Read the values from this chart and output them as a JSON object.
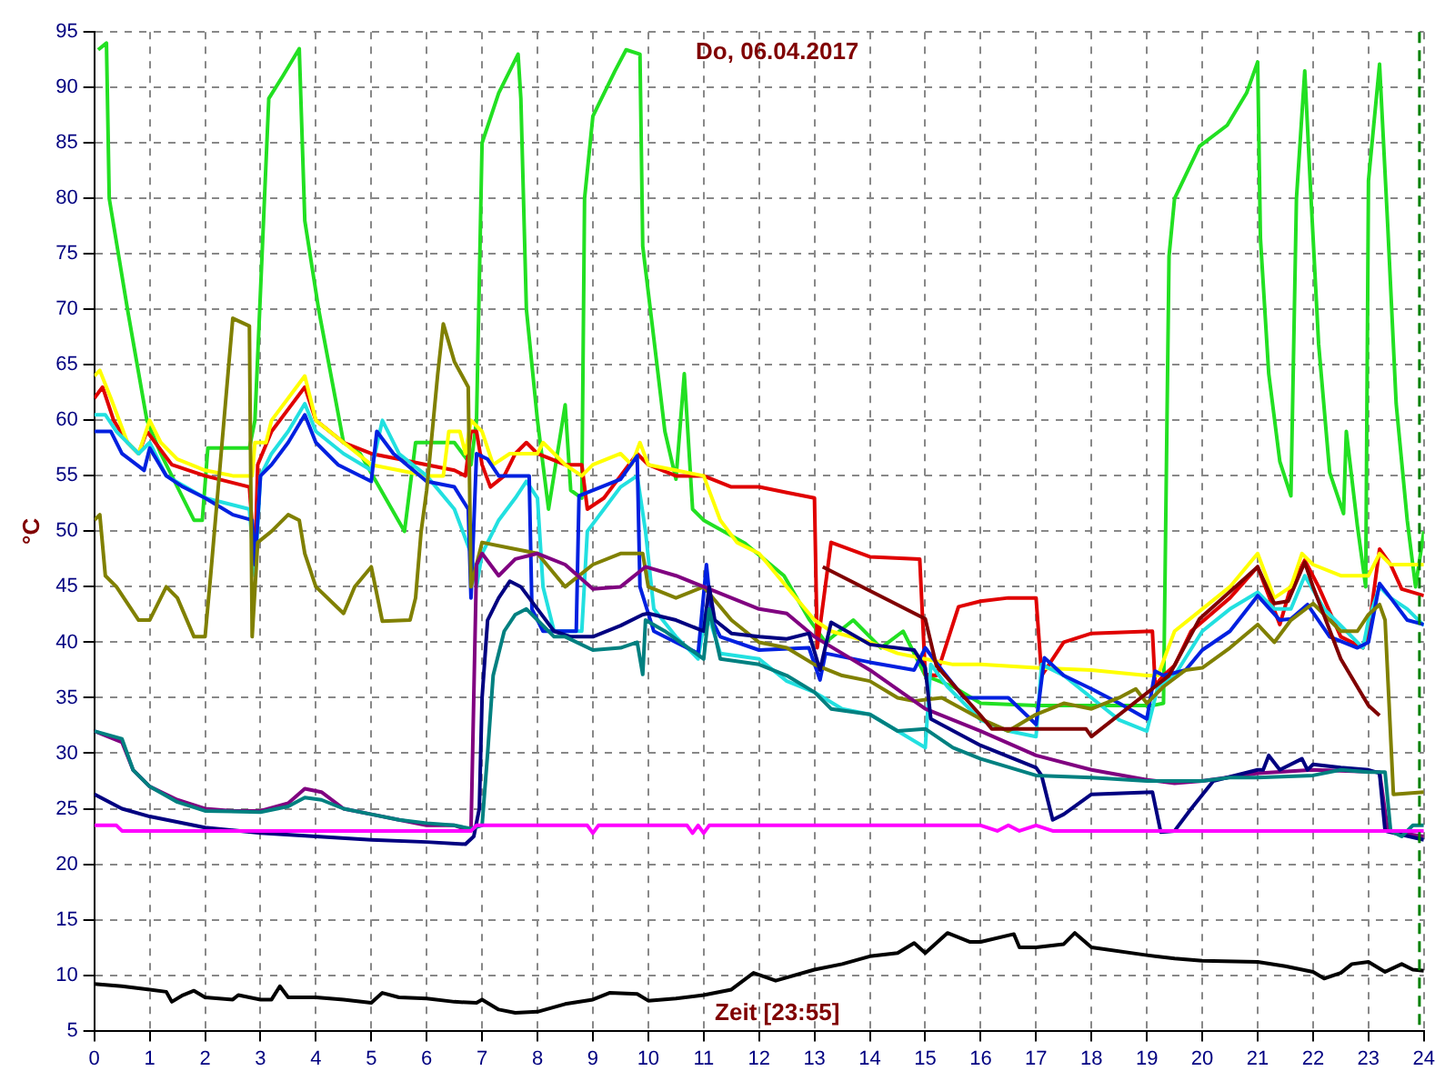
{
  "chart_data": {
    "type": "line",
    "title": "Do, 06.04.2017",
    "xlabel": "Zeit [23:55]",
    "ylabel": "°C",
    "xlim": [
      0,
      24
    ],
    "xticks": [
      0,
      1,
      2,
      3,
      4,
      5,
      6,
      7,
      8,
      9,
      10,
      11,
      12,
      13,
      14,
      15,
      16,
      17,
      18,
      19,
      20,
      21,
      22,
      23,
      24
    ],
    "ylim": [
      5,
      95
    ],
    "yticks": [
      5,
      10,
      15,
      20,
      25,
      30,
      35,
      40,
      45,
      50,
      55,
      60,
      65,
      70,
      75,
      80,
      85,
      90,
      95
    ],
    "grid": true,
    "marker": "none",
    "line_style": "solid",
    "ref_lines": [
      {
        "axis": "x",
        "value": 23.92,
        "color": "#008000",
        "line_style": "dashed"
      }
    ],
    "series": [
      {
        "color": "#000000",
        "x": [
          0,
          0.5,
          1,
          1.3,
          1.4,
          1.6,
          1.8,
          2,
          2.5,
          2.6,
          3,
          3.2,
          3.35,
          3.5,
          4,
          4.5,
          5,
          5.2,
          5.5,
          6,
          6.5,
          6.9,
          7,
          7.3,
          7.6,
          8,
          8.5,
          9,
          9.3,
          9.8,
          10,
          10.5,
          11,
          11.5,
          11.9,
          12.3,
          13,
          13.5,
          14,
          14.5,
          14.8,
          15,
          15.4,
          15.8,
          16,
          16.6,
          16.7,
          17,
          17.5,
          17.7,
          18,
          19,
          19.5,
          20,
          21,
          21.5,
          22,
          22.2,
          22.5,
          22.7,
          23,
          23.3,
          23.6,
          23.8,
          24
        ],
        "values": [
          9.2,
          9,
          8.7,
          8.5,
          7.6,
          8.2,
          8.6,
          8,
          7.8,
          8.2,
          7.8,
          7.8,
          9,
          8,
          8,
          7.8,
          7.5,
          8.4,
          8,
          7.9,
          7.6,
          7.5,
          7.8,
          6.9,
          6.6,
          6.7,
          7.4,
          7.8,
          8.4,
          8.3,
          7.7,
          7.9,
          8.2,
          8.7,
          10.2,
          9.5,
          10.5,
          11,
          11.7,
          12,
          12.9,
          12,
          13.8,
          13,
          13,
          13.7,
          12.5,
          12.5,
          12.8,
          13.8,
          12.5,
          11.8,
          11.5,
          11.3,
          11.2,
          10.8,
          10.3,
          9.7,
          10.2,
          11,
          11.2,
          10.3,
          11,
          10.5,
          10.4
        ]
      },
      {
        "color": "#ff00ff",
        "x": [
          0,
          0.4,
          0.5,
          6.8,
          6.9,
          8.9,
          9.0,
          9.1,
          10.7,
          10.8,
          10.9,
          11.0,
          11.1,
          16,
          16.3,
          16.5,
          16.7,
          17.0,
          17.3,
          24
        ],
        "values": [
          23.5,
          23.5,
          23,
          23,
          23.5,
          23.5,
          22.8,
          23.5,
          23.5,
          22.8,
          23.5,
          22.8,
          23.5,
          23.5,
          23,
          23.5,
          23,
          23.5,
          23,
          23
        ]
      },
      {
        "color": "#008080",
        "x": [
          0,
          0.5,
          0.7,
          1.0,
          1.5,
          2,
          3,
          3.5,
          3.8,
          4.1,
          4.5,
          5,
          5.5,
          6,
          6.5,
          6.8,
          7.0,
          7.1,
          7.2,
          7.4,
          7.6,
          7.8,
          8.0,
          8.3,
          8.5,
          9,
          9.5,
          9.8,
          9.9,
          9.95,
          10.3,
          11,
          11.1,
          11.3,
          12,
          12.5,
          13,
          13.3,
          14,
          14.5,
          15,
          15.5,
          16,
          17,
          18,
          19,
          20,
          20.5,
          21,
          22,
          22.5,
          23,
          23.3,
          23.4,
          23.6,
          23.8,
          24
        ],
        "values": [
          32,
          31.3,
          28.5,
          27,
          25.6,
          24.8,
          24.7,
          25.2,
          26,
          25.8,
          25,
          24.5,
          24,
          23.7,
          23.5,
          23.2,
          23.5,
          30,
          37,
          41,
          42.5,
          43,
          42,
          40.5,
          40.5,
          39.3,
          39.5,
          40,
          37.1,
          42,
          41,
          38.5,
          43,
          38.5,
          38,
          37,
          35.5,
          34,
          33.5,
          32,
          32.2,
          30.5,
          29.5,
          28,
          27.8,
          27.5,
          27.5,
          27.8,
          27.8,
          28,
          28.5,
          28.3,
          28.3,
          23,
          22.5,
          23.5,
          23.5
        ]
      },
      {
        "color": "#000080",
        "x": [
          0,
          0.5,
          1,
          2,
          3,
          4,
          5,
          6,
          6.7,
          6.85,
          6.95,
          7.0,
          7.1,
          7.3,
          7.5,
          7.7,
          8.0,
          8.3,
          8.6,
          9,
          9.5,
          9.9,
          10,
          10.5,
          11,
          11.1,
          11.2,
          11.5,
          12,
          12.5,
          12.9,
          13.1,
          13.3,
          14,
          14.8,
          15.0,
          15.1,
          16,
          17,
          17.1,
          17.3,
          17.5,
          18,
          19.1,
          19.25,
          19.5,
          19.8,
          20.2,
          21,
          21.1,
          21.2,
          21.4,
          21.8,
          21.9,
          22,
          22.5,
          23,
          23.2,
          23.3,
          24
        ],
        "values": [
          26.3,
          25,
          24.3,
          23.3,
          22.8,
          22.5,
          22.2,
          22,
          21.8,
          22.5,
          25,
          35,
          42,
          44,
          45.5,
          45,
          43,
          41,
          40.5,
          40.5,
          41.5,
          42.5,
          42.6,
          42,
          41,
          45,
          42,
          40.8,
          40.5,
          40.3,
          40.8,
          37.5,
          41.8,
          39.8,
          39.3,
          37.7,
          33.1,
          30.7,
          28.7,
          28,
          24,
          24.5,
          26.3,
          26.5,
          22.9,
          23,
          25,
          27.5,
          28.5,
          28.5,
          29.8,
          28.5,
          29.5,
          28.5,
          29,
          28.7,
          28.5,
          28.2,
          23,
          22.2
        ]
      },
      {
        "color": "#800080",
        "x": [
          0,
          0.5,
          0.7,
          1.0,
          1.5,
          2,
          2.5,
          3,
          3.5,
          3.8,
          4.1,
          4.5,
          5,
          5.5,
          6,
          6.5,
          6.8,
          6.85,
          6.9,
          7.0,
          7.3,
          7.6,
          8.0,
          8.5,
          9,
          9.5,
          9.95,
          10.5,
          11,
          12,
          12.5,
          13,
          14,
          15,
          16,
          17,
          18,
          19,
          19.5,
          20,
          21,
          22,
          23.2,
          23.35,
          24
        ],
        "values": [
          32,
          31,
          28.5,
          27,
          25.8,
          25,
          24.8,
          24.8,
          25.5,
          26.8,
          26.5,
          25,
          24.5,
          24,
          23.5,
          23.5,
          23,
          35,
          47,
          48,
          46,
          47.5,
          48,
          47,
          44.8,
          45,
          46.8,
          46,
          45,
          43,
          42.6,
          40.5,
          37.5,
          34,
          32,
          29.8,
          28.5,
          27.6,
          27.3,
          27.5,
          28.2,
          28.5,
          28.3,
          23,
          22.5
        ]
      },
      {
        "color": "#800000",
        "x": [
          13.15,
          15.0,
          15.2,
          16.0,
          16.2,
          17.9,
          18.0,
          19.4,
          19.95,
          21,
          21.3,
          21.55,
          21.85,
          22,
          22.5,
          23,
          23.2
        ],
        "values": [
          46.8,
          42.1,
          37.9,
          33.4,
          32.2,
          32.2,
          31.5,
          37,
          42.1,
          46.8,
          43.5,
          43.7,
          47.2,
          45,
          38.5,
          34.3,
          33.4
        ]
      },
      {
        "color": "#808000",
        "x": [
          0,
          0.1,
          0.2,
          0.4,
          0.8,
          1.0,
          1.3,
          1.5,
          1.8,
          2.0,
          2.1,
          2.5,
          2.8,
          2.85,
          2.95,
          3.2,
          3.5,
          3.7,
          3.8,
          4.0,
          4.5,
          4.7,
          5.0,
          5.2,
          5.7,
          5.8,
          5.9,
          6.0,
          6.2,
          6.3,
          6.5,
          6.75,
          6.8,
          7.0,
          7.5,
          8.0,
          8.5,
          9,
          9.5,
          9.9,
          10,
          10.5,
          11,
          11.5,
          12,
          12.5,
          13,
          13.5,
          14,
          14.5,
          14.8,
          15.3,
          16,
          16.5,
          17,
          17.5,
          18,
          18.5,
          18.8,
          19,
          19.3,
          19.7,
          20,
          20.5,
          21,
          21.3,
          21.6,
          22,
          22.5,
          22.8,
          23.0,
          23.2,
          23.3,
          23.45,
          24
        ],
        "values": [
          51,
          51.5,
          46,
          45,
          42,
          42,
          45,
          44,
          40.5,
          40.5,
          46,
          69.2,
          68.5,
          40.5,
          49,
          50,
          51.5,
          51,
          48,
          45,
          42.6,
          45,
          46.8,
          41.9,
          42,
          44,
          50,
          53.7,
          64.2,
          68.7,
          65.3,
          63,
          45,
          49,
          48.5,
          48,
          45,
          47,
          48,
          48,
          45,
          44,
          45,
          42,
          40,
          39.5,
          38,
          37,
          36.5,
          35,
          34.7,
          35,
          33.1,
          32,
          33.5,
          34.5,
          34,
          35,
          35.8,
          34.5,
          36,
          37.5,
          37.7,
          39.5,
          41.6,
          40,
          42,
          43.5,
          41,
          41,
          42.5,
          43.4,
          42,
          26.3,
          26.5
        ]
      },
      {
        "color": "#0020e0",
        "x": [
          0,
          0.3,
          0.5,
          0.9,
          1.0,
          1.3,
          1.6,
          2,
          2.5,
          2.85,
          2.9,
          3.0,
          3.2,
          3.5,
          3.8,
          4.0,
          4.4,
          5,
          5.1,
          5.4,
          6,
          6.5,
          6.75,
          6.8,
          6.9,
          7.1,
          7.3,
          7.85,
          7.9,
          8.1,
          8.7,
          8.75,
          9.5,
          9.8,
          9.85,
          10.1,
          10.5,
          10.9,
          11.05,
          11.15,
          11.3,
          12,
          12.9,
          13.1,
          13.2,
          14,
          14.8,
          15.0,
          15.3,
          15.7,
          16.5,
          17,
          17.15,
          17.5,
          18,
          18.5,
          19,
          19.15,
          19.3,
          19.7,
          20,
          20.5,
          21,
          21.4,
          21.6,
          21.9,
          22.3,
          22.8,
          23.0,
          23.2,
          23.4,
          23.7,
          24
        ],
        "values": [
          59,
          59,
          57,
          55.5,
          57.5,
          55,
          54,
          53,
          51.5,
          51,
          47,
          55,
          56,
          58,
          60.5,
          58,
          56,
          54.5,
          59,
          57,
          54.5,
          54,
          52,
          44,
          57,
          56.5,
          55,
          55,
          43,
          41,
          41,
          53.2,
          54.7,
          56.8,
          45,
          41,
          40,
          39,
          47,
          42,
          40.5,
          39.3,
          39.5,
          36.6,
          39,
          38.2,
          37.5,
          39.5,
          37.5,
          35,
          35,
          32.6,
          38.6,
          37,
          35.8,
          34.5,
          33.1,
          37.4,
          37,
          37.5,
          39.3,
          41,
          44.2,
          42,
          42.1,
          43.4,
          40.5,
          39.5,
          40,
          45.3,
          44,
          42,
          41.6
        ]
      },
      {
        "color": "#22e0e0",
        "x": [
          0,
          0.2,
          0.4,
          0.8,
          1.0,
          1.3,
          2,
          2.8,
          2.9,
          3.0,
          3.2,
          3.5,
          3.8,
          4.0,
          4.5,
          5,
          5.2,
          5.5,
          6,
          6.5,
          6.8,
          6.9,
          7.0,
          7.3,
          7.6,
          7.8,
          8.0,
          8.1,
          8.3,
          8.8,
          8.9,
          9.2,
          9.5,
          9.8,
          9.95,
          10.1,
          10.5,
          10.9,
          11.05,
          11.3,
          12,
          12.5,
          13,
          13.5,
          14,
          14.5,
          15,
          15.1,
          15.4,
          16,
          16.5,
          17,
          17.1,
          17.5,
          18,
          18.5,
          19,
          19.2,
          19.5,
          20,
          20.5,
          21,
          21.3,
          21.6,
          21.85,
          22.2,
          22.6,
          22.9,
          23.0,
          23.2,
          23.4,
          23.7,
          24
        ],
        "values": [
          60.5,
          60.5,
          59,
          57,
          58,
          55,
          53,
          52,
          46,
          55,
          57,
          59,
          61.5,
          59,
          57,
          55.5,
          60,
          57,
          55,
          52,
          48,
          45,
          48,
          51,
          53,
          54.5,
          53,
          45,
          41,
          41,
          50,
          52,
          54,
          55,
          50,
          43,
          40.5,
          38.5,
          43,
          39,
          38.5,
          36.5,
          35.5,
          34,
          33.5,
          32,
          30.5,
          38,
          36,
          33,
          32,
          31.5,
          38,
          37,
          35,
          33,
          32,
          36,
          37,
          41,
          43,
          44.5,
          43,
          43,
          46,
          43,
          41,
          39.5,
          42,
          45,
          44,
          43,
          41.5
        ]
      },
      {
        "color": "#ffff00",
        "x": [
          0,
          0.1,
          0.3,
          0.6,
          0.8,
          1.0,
          1.2,
          1.5,
          2,
          2.5,
          2.85,
          2.9,
          3.1,
          3.2,
          3.5,
          3.8,
          4.0,
          4.5,
          5,
          5.5,
          6,
          6.3,
          6.4,
          6.6,
          6.7,
          6.8,
          7.0,
          7.2,
          7.5,
          8.0,
          8.1,
          8.5,
          8.8,
          9.0,
          9.5,
          9.7,
          9.85,
          10,
          10.5,
          11,
          11.3,
          11.6,
          12,
          12.5,
          13,
          13.3,
          14,
          14.5,
          15,
          15.5,
          16,
          17,
          18,
          19,
          19.2,
          19.5,
          20,
          20.5,
          21,
          21.3,
          21.6,
          21.8,
          22,
          22.5,
          23,
          23.2,
          23.4,
          23.7,
          24
        ],
        "values": [
          64,
          64.5,
          62,
          58,
          57,
          60,
          58,
          56.5,
          55.5,
          55,
          55,
          58,
          58,
          60,
          62,
          64,
          60,
          58,
          56,
          55.5,
          55,
          55,
          59,
          59,
          57,
          60,
          59,
          56,
          57,
          57,
          58,
          56,
          55,
          56,
          57,
          56,
          58,
          56,
          55.5,
          55,
          51,
          49,
          48,
          45,
          42,
          41,
          40,
          39,
          38.5,
          38,
          38,
          37.7,
          37.5,
          37,
          37,
          41,
          43,
          45,
          48,
          44,
          45,
          48,
          47,
          46,
          46,
          48,
          47,
          47,
          47
        ]
      },
      {
        "color": "#e00000",
        "x": [
          0,
          0.15,
          0.35,
          0.6,
          0.8,
          0.95,
          1.1,
          1.4,
          2,
          2.8,
          2.9,
          2.95,
          3.2,
          3.5,
          3.8,
          4.0,
          4.5,
          5,
          5.5,
          6,
          6.5,
          6.7,
          6.8,
          6.9,
          7.0,
          7.15,
          7.4,
          7.6,
          7.8,
          8,
          8.5,
          8.8,
          8.9,
          9.2,
          9.5,
          9.8,
          10,
          10.5,
          11,
          11.5,
          12,
          12.5,
          13,
          13.05,
          13.3,
          14,
          14.9,
          15.0,
          15.2,
          15.6,
          16,
          16.5,
          17,
          17.1,
          17.5,
          18,
          19.1,
          19.15,
          19.3,
          19.5,
          19.8,
          20.5,
          21,
          21.4,
          21.6,
          21.85,
          22.1,
          22.5,
          22.9,
          23,
          23.2,
          23.4,
          23.6,
          24
        ],
        "values": [
          62,
          63,
          60,
          58,
          57,
          59,
          58,
          56,
          55,
          54,
          47,
          56,
          59,
          61,
          63,
          60,
          58,
          57,
          56.5,
          56,
          55.5,
          55,
          59,
          59,
          56,
          54,
          55,
          57,
          58,
          57,
          56,
          56,
          52,
          53,
          55,
          57,
          56,
          55,
          55,
          54,
          54,
          53.5,
          53,
          39.5,
          49,
          47.7,
          47.5,
          37.1,
          37,
          43.2,
          43.7,
          44,
          44,
          37,
          40,
          40.8,
          41,
          36.1,
          37,
          37.9,
          41,
          44,
          46.8,
          41.6,
          45,
          47.4,
          45,
          40.5,
          39.5,
          41,
          48.4,
          47,
          44.8,
          44.2
        ]
      },
      {
        "color": "#22e022",
        "x": [
          0.07,
          0.22,
          0.27,
          0.6,
          0.95,
          1.2,
          1.4,
          1.8,
          1.95,
          2.05,
          2.8,
          2.9,
          3.15,
          3.4,
          3.7,
          3.8,
          4.05,
          4.35,
          4.5,
          4.8,
          5.6,
          5.8,
          6.5,
          6.8,
          6.9,
          7.0,
          7.3,
          7.65,
          7.7,
          7.8,
          8.0,
          8.2,
          8.5,
          8.6,
          8.8,
          8.85,
          9.0,
          9.4,
          9.6,
          9.85,
          9.9,
          10.1,
          10.3,
          10.5,
          10.65,
          10.8,
          11.0,
          11.75,
          12.45,
          12.9,
          13.2,
          13.7,
          14.2,
          14.6,
          15.0,
          15.5,
          16.0,
          17.0,
          19.1,
          19.3,
          19.4,
          19.5,
          19.95,
          20.45,
          20.8,
          21.0,
          21.05,
          21.2,
          21.4,
          21.6,
          21.7,
          21.85,
          21.95,
          22.1,
          22.3,
          22.55,
          22.6,
          22.8,
          22.95,
          23.0,
          23.2,
          23.35,
          23.5,
          23.7,
          23.85,
          24
        ],
        "values": [
          93.4,
          94,
          80,
          70,
          60,
          57,
          55,
          51,
          51,
          57.5,
          57.5,
          60,
          89,
          91,
          93.5,
          78,
          70,
          62,
          58,
          57,
          50,
          58,
          58,
          56,
          60,
          85,
          89.5,
          93,
          89,
          70,
          60,
          52,
          61.4,
          53.7,
          53,
          80,
          87.4,
          91.5,
          93.4,
          93,
          75.7,
          67.4,
          59,
          54.7,
          64.2,
          52,
          51,
          48.9,
          46,
          42.1,
          40,
          42,
          39.5,
          41,
          37,
          36,
          34.5,
          34.3,
          34.3,
          34.5,
          74.8,
          80,
          84.7,
          86.6,
          89.5,
          92.3,
          76.4,
          64.2,
          56.3,
          53.2,
          80,
          91.5,
          81.3,
          66.9,
          55.3,
          51.6,
          59,
          50.5,
          45,
          81.6,
          92.1,
          77.3,
          61.5,
          51,
          45,
          50
        ]
      }
    ]
  }
}
